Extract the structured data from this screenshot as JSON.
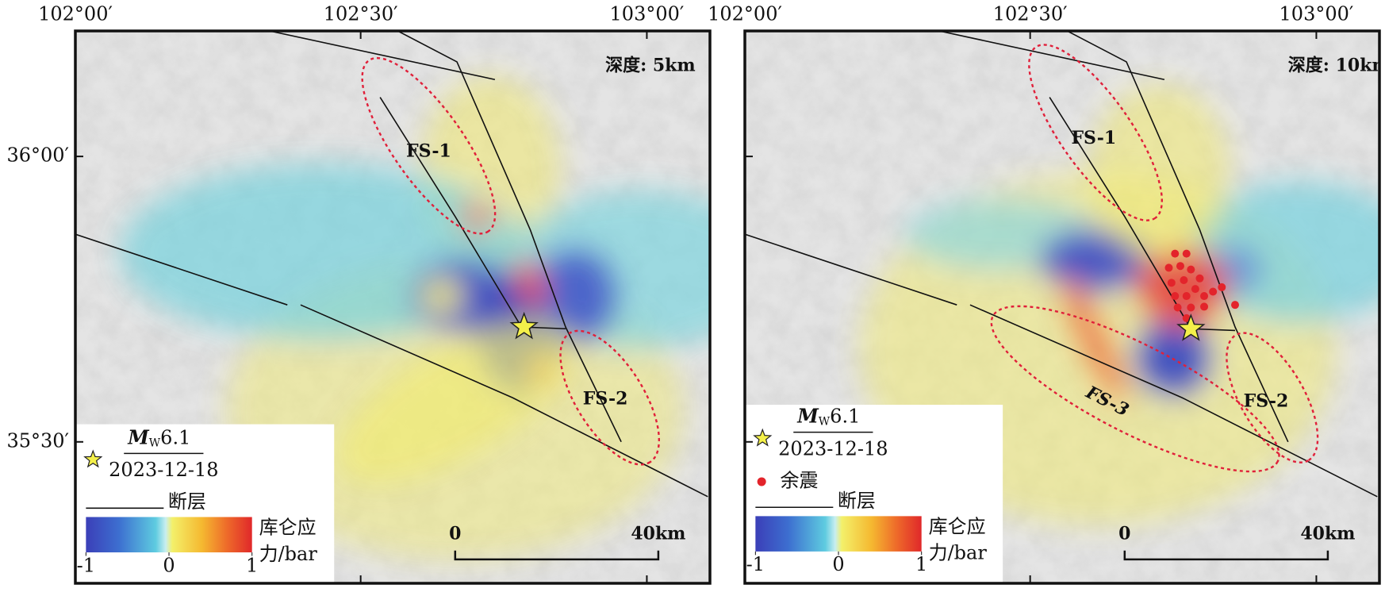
{
  "panels": [
    {
      "depth_label": "深度: 5km",
      "lon_labels": [
        "102°00′",
        "102°30′",
        "103°00′"
      ],
      "lat_labels": [
        "36°00′",
        "35°30′"
      ],
      "zones": [
        "FS-1",
        "FS-2"
      ],
      "legend": {
        "magnitude": {
          "symbol": "M",
          "subscript": "W",
          "value": "6.1"
        },
        "date": "2023-12-18",
        "fault": "断层",
        "colorbar": {
          "title_lines": [
            "库仑应",
            "力/bar"
          ],
          "lim": [
            -1,
            1
          ],
          "ticks": [
            -1,
            0,
            1
          ]
        }
      },
      "scale_bar": [
        "0",
        "40km"
      ]
    },
    {
      "depth_label": "深度: 10km",
      "lon_labels": [
        "102°00′",
        "102°30′",
        "103°00′"
      ],
      "zones": [
        "FS-1",
        "FS-2",
        "FS-3"
      ],
      "legend": {
        "magnitude": {
          "symbol": "M",
          "subscript": "W",
          "value": "6.1"
        },
        "date": "2023-12-18",
        "aftershock": "余震",
        "fault": "断层",
        "colorbar": {
          "title_lines": [
            "库仑应",
            "力/bar"
          ],
          "lim": [
            -1,
            1
          ],
          "ticks": [
            -1,
            0,
            1
          ]
        }
      },
      "scale_bar": [
        "0",
        "40km"
      ]
    }
  ]
}
